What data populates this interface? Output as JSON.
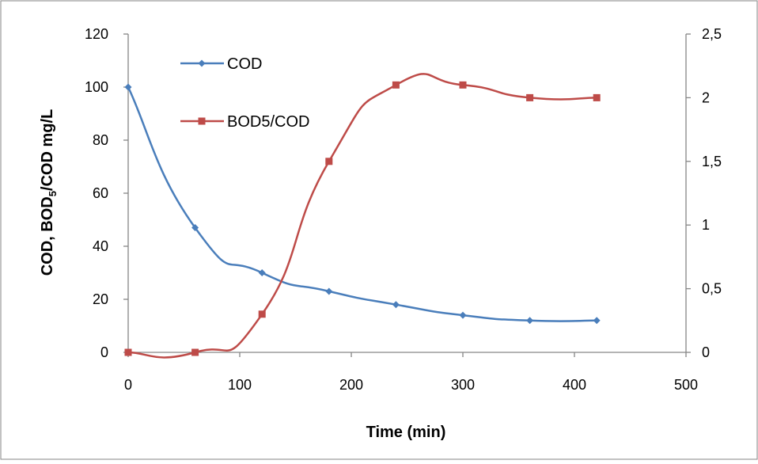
{
  "chart_data": {
    "type": "line",
    "xlabel": "Time (min)",
    "ylabel": {
      "prefix": "COD, BOD",
      "subscript": "5",
      "suffix": "/COD mg/L"
    },
    "x_ticks": [
      "0",
      "100",
      "200",
      "300",
      "400",
      "500"
    ],
    "y_left_ticks": [
      "0",
      "20",
      "40",
      "60",
      "80",
      "100",
      "120"
    ],
    "y_right_ticks": [
      "0",
      "0,5",
      "1",
      "1,5",
      "2",
      "2,5"
    ],
    "xlim": [
      0,
      500
    ],
    "ylim_left": [
      0,
      120
    ],
    "ylim_right": [
      0,
      2.5
    ],
    "grid": false,
    "legend_position": "top-left",
    "colors": {
      "cod": "#4A7EBB",
      "bod5_cod": "#BE4B48",
      "frame": "#868686"
    },
    "series": [
      {
        "name": "COD",
        "axis": "left",
        "marker": "diamond",
        "x": [
          0,
          60,
          120,
          180,
          240,
          300,
          360,
          420
        ],
        "y": [
          100,
          47,
          30,
          23,
          18,
          14,
          12,
          12
        ]
      },
      {
        "name": "BOD5/COD",
        "axis": "right",
        "marker": "square",
        "x": [
          0,
          60,
          120,
          180,
          240,
          300,
          360,
          420
        ],
        "y": [
          0,
          0,
          0.3,
          1.5,
          2.1,
          2.1,
          2.0,
          2.0
        ]
      }
    ]
  }
}
